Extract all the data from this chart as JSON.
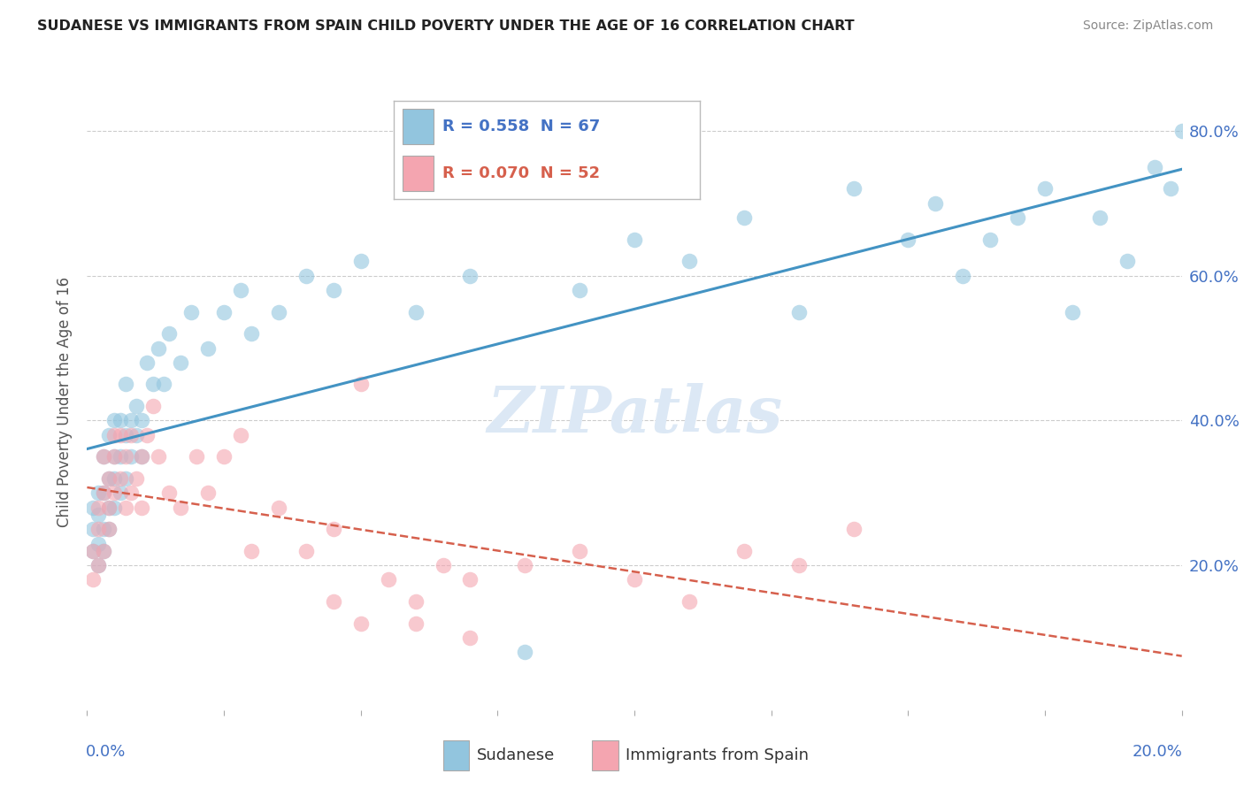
{
  "title": "SUDANESE VS IMMIGRANTS FROM SPAIN CHILD POVERTY UNDER THE AGE OF 16 CORRELATION CHART",
  "source": "Source: ZipAtlas.com",
  "ylabel": "Child Poverty Under the Age of 16",
  "legend_entry1": "R = 0.558  N = 67",
  "legend_entry2": "R = 0.070  N = 52",
  "legend_label1": "Sudanese",
  "legend_label2": "Immigrants from Spain",
  "R1": 0.558,
  "N1": 67,
  "R2": 0.07,
  "N2": 52,
  "color_blue": "#92c5de",
  "color_pink": "#f4a5b0",
  "trendline_blue": "#4393c3",
  "trendline_pink": "#d6604d",
  "watermark_color": "#dce8f5",
  "background_color": "#ffffff",
  "xlim": [
    0.0,
    0.2
  ],
  "ylim": [
    0.0,
    0.85
  ],
  "sudanese_x": [
    0.001,
    0.001,
    0.001,
    0.002,
    0.002,
    0.002,
    0.002,
    0.003,
    0.003,
    0.003,
    0.003,
    0.004,
    0.004,
    0.004,
    0.004,
    0.005,
    0.005,
    0.005,
    0.005,
    0.006,
    0.006,
    0.006,
    0.007,
    0.007,
    0.007,
    0.008,
    0.008,
    0.009,
    0.009,
    0.01,
    0.01,
    0.011,
    0.012,
    0.013,
    0.014,
    0.015,
    0.017,
    0.019,
    0.022,
    0.025,
    0.028,
    0.03,
    0.035,
    0.04,
    0.045,
    0.05,
    0.06,
    0.07,
    0.08,
    0.09,
    0.1,
    0.11,
    0.12,
    0.13,
    0.14,
    0.15,
    0.16,
    0.17,
    0.18,
    0.19,
    0.155,
    0.165,
    0.175,
    0.185,
    0.195,
    0.198,
    0.2
  ],
  "sudanese_y": [
    0.22,
    0.25,
    0.28,
    0.2,
    0.23,
    0.27,
    0.3,
    0.22,
    0.25,
    0.3,
    0.35,
    0.25,
    0.28,
    0.32,
    0.38,
    0.28,
    0.32,
    0.35,
    0.4,
    0.3,
    0.35,
    0.4,
    0.32,
    0.38,
    0.45,
    0.35,
    0.4,
    0.38,
    0.42,
    0.35,
    0.4,
    0.48,
    0.45,
    0.5,
    0.45,
    0.52,
    0.48,
    0.55,
    0.5,
    0.55,
    0.58,
    0.52,
    0.55,
    0.6,
    0.58,
    0.62,
    0.55,
    0.6,
    0.08,
    0.58,
    0.65,
    0.62,
    0.68,
    0.55,
    0.72,
    0.65,
    0.6,
    0.68,
    0.55,
    0.62,
    0.7,
    0.65,
    0.72,
    0.68,
    0.75,
    0.72,
    0.8
  ],
  "spain_x": [
    0.001,
    0.001,
    0.002,
    0.002,
    0.002,
    0.003,
    0.003,
    0.003,
    0.004,
    0.004,
    0.004,
    0.005,
    0.005,
    0.005,
    0.006,
    0.006,
    0.007,
    0.007,
    0.008,
    0.008,
    0.009,
    0.01,
    0.01,
    0.011,
    0.012,
    0.013,
    0.015,
    0.017,
    0.02,
    0.022,
    0.025,
    0.028,
    0.03,
    0.035,
    0.04,
    0.045,
    0.05,
    0.06,
    0.07,
    0.08,
    0.09,
    0.1,
    0.11,
    0.12,
    0.13,
    0.14,
    0.045,
    0.05,
    0.055,
    0.06,
    0.065,
    0.07
  ],
  "spain_y": [
    0.18,
    0.22,
    0.2,
    0.25,
    0.28,
    0.22,
    0.3,
    0.35,
    0.25,
    0.28,
    0.32,
    0.3,
    0.35,
    0.38,
    0.32,
    0.38,
    0.28,
    0.35,
    0.3,
    0.38,
    0.32,
    0.28,
    0.35,
    0.38,
    0.42,
    0.35,
    0.3,
    0.28,
    0.35,
    0.3,
    0.35,
    0.38,
    0.22,
    0.28,
    0.22,
    0.25,
    0.45,
    0.15,
    0.18,
    0.2,
    0.22,
    0.18,
    0.15,
    0.22,
    0.2,
    0.25,
    0.15,
    0.12,
    0.18,
    0.12,
    0.2,
    0.1
  ]
}
